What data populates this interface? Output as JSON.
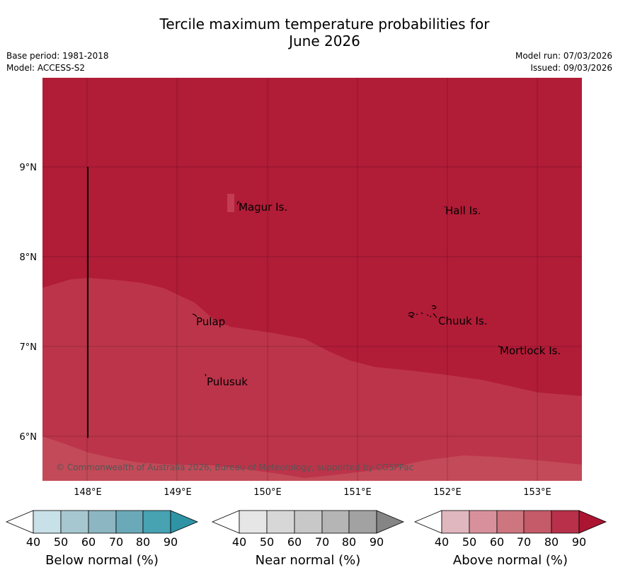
{
  "title": {
    "line1": "Tercile maximum temperature probabilities for",
    "line2": "June 2026"
  },
  "meta": {
    "base_period": "Base period: 1981-2018",
    "model": "Model: ACCESS-S2",
    "model_run": "Model run: 07/03/2026",
    "issued": "Issued: 09/03/2026"
  },
  "map": {
    "lat_labels": [
      "9°N",
      "8°N",
      "7°N",
      "6°N"
    ],
    "lon_labels": [
      "148°E",
      "149°E",
      "150°E",
      "151°E",
      "152°E",
      "153°E"
    ],
    "places": {
      "magur": "Magur Is.",
      "hall": "Hall Is.",
      "pulap": "Pulap",
      "chuuk": "Chuuk Is.",
      "mortlock": "Mortlock Is.",
      "pulusuk": "Pulusuk"
    },
    "copyright": "© Commonwealth of Australia 2026, Bureau of Meteorology, supported by COSPPac",
    "colors": {
      "above_80_90": "#b11c37",
      "above_70_80": "#bc344a",
      "above_60_70": "#c34a58"
    }
  },
  "colorbars": {
    "tick_labels": [
      "40",
      "50",
      "60",
      "70",
      "80",
      "90"
    ],
    "below": {
      "title": "Below normal (%)",
      "colors": [
        "#ffffff",
        "#c8e0e7",
        "#a6c7cf",
        "#8bb6c2",
        "#6aa9b8",
        "#47a2b2",
        "#2e93a5"
      ]
    },
    "near": {
      "title": "Near normal (%)",
      "colors": [
        "#ffffff",
        "#e6e6e6",
        "#d7d7d7",
        "#c8c8c8",
        "#b5b5b5",
        "#a2a2a2",
        "#858585"
      ]
    },
    "above": {
      "title": "Above normal (%)",
      "colors": [
        "#ffffff",
        "#e0b6bf",
        "#d8919c",
        "#cd7680",
        "#c55a68",
        "#b8304a",
        "#ab1532"
      ]
    }
  }
}
